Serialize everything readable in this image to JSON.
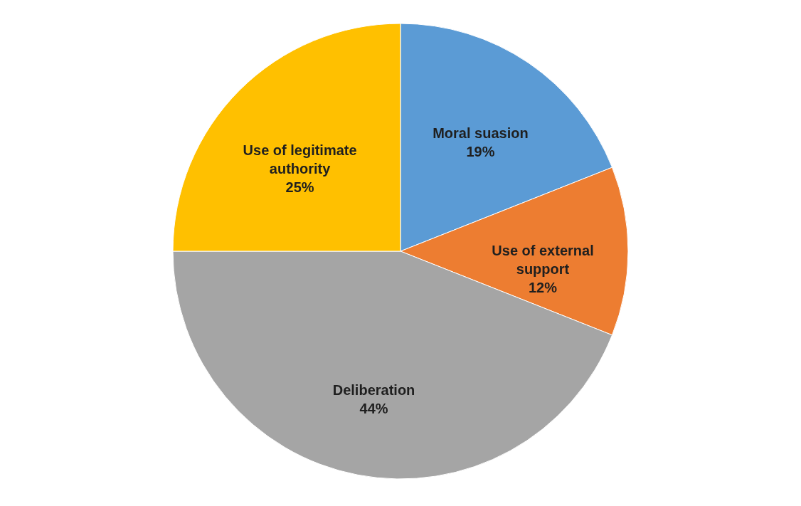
{
  "chart_data": {
    "type": "pie",
    "categories": [
      "Moral suasion",
      "Use of external support",
      "Deliberation",
      "Use of legitimate authority"
    ],
    "values": [
      19,
      12,
      44,
      25
    ],
    "colors": [
      "#5b9bd5",
      "#ed7d31",
      "#a5a5a5",
      "#ffc000"
    ],
    "value_labels": [
      "19%",
      "12%",
      "44%",
      "25%"
    ],
    "legend": false
  }
}
